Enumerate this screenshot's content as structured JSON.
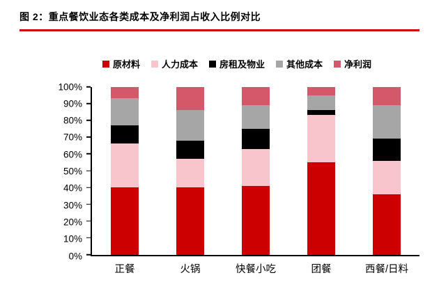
{
  "header": {
    "title": "图 2：重点餐饮业态各类成本及净利润占收入比例对比"
  },
  "colors": {
    "accent_red": "#cc0000",
    "axis": "#000000"
  },
  "chart_data": {
    "type": "bar",
    "stacked": true,
    "stacked_to_100_percent": true,
    "title": "重点餐饮业态各类成本及净利润占收入比例对比",
    "xlabel": "",
    "ylabel": "",
    "ylim": [
      0,
      100
    ],
    "grid": false,
    "legend_position": "top",
    "categories": [
      "正餐",
      "火锅",
      "快餐小吃",
      "团餐",
      "西餐/日料"
    ],
    "yticks": [
      "0%",
      "10%",
      "20%",
      "30%",
      "40%",
      "50%",
      "60%",
      "70%",
      "80%",
      "90%",
      "100%"
    ],
    "series": [
      {
        "name": "原材料",
        "color": "#cc0000",
        "values": [
          40,
          40,
          41,
          55,
          36
        ]
      },
      {
        "name": "人力成本",
        "color": "#f7c5cb",
        "values": [
          26,
          17,
          22,
          28,
          20
        ]
      },
      {
        "name": "房租及物业",
        "color": "#000000",
        "values": [
          11,
          11,
          12,
          3,
          13
        ]
      },
      {
        "name": "其他成本",
        "color": "#a6a6a6",
        "values": [
          16,
          18,
          14,
          9,
          20
        ]
      },
      {
        "name": "净利润",
        "color": "#d4586a",
        "values": [
          7,
          14,
          11,
          5,
          11
        ]
      }
    ]
  }
}
